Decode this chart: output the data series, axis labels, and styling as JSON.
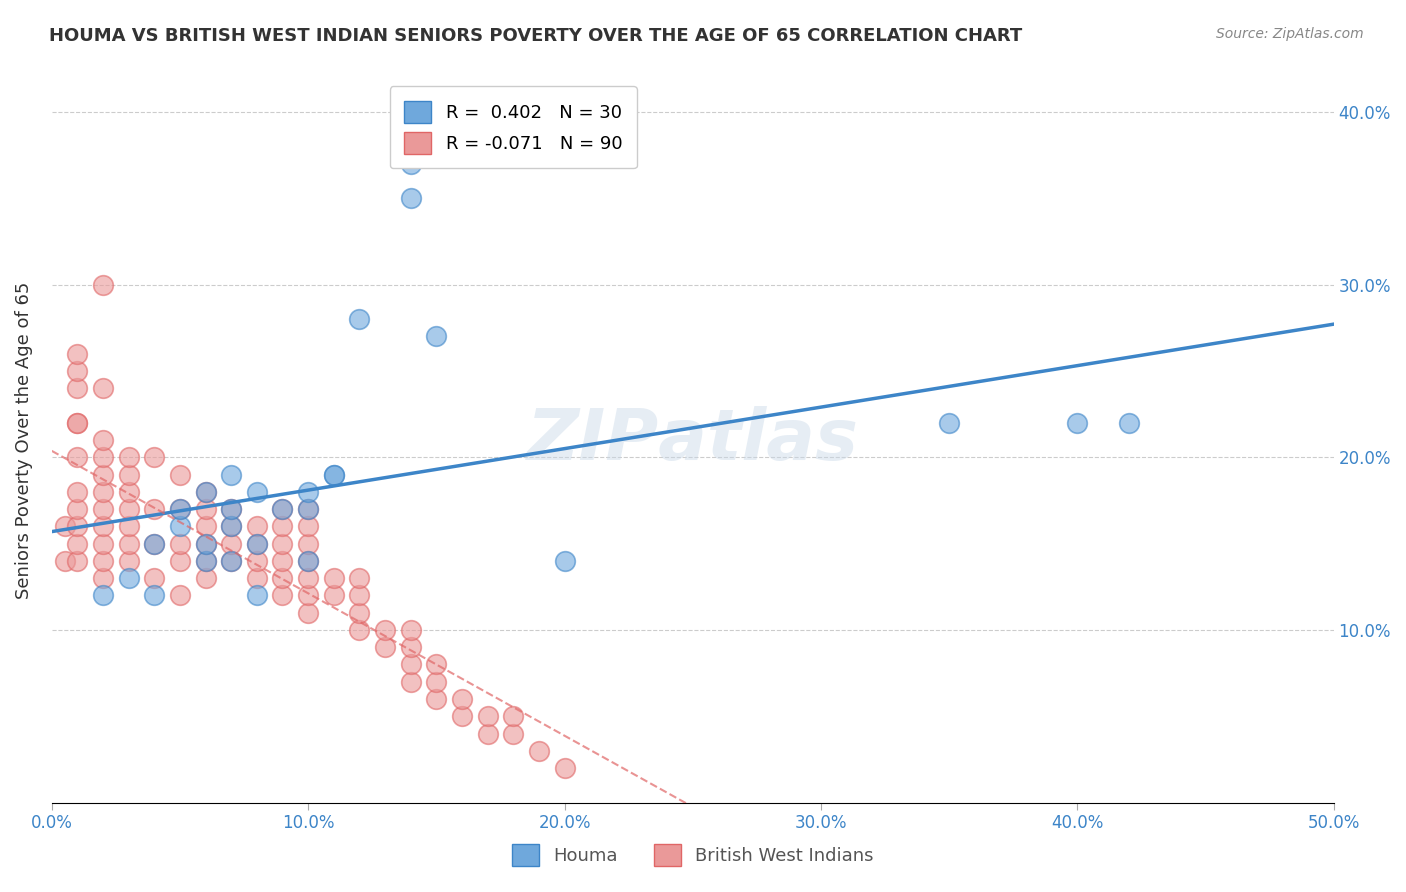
{
  "title": "HOUMA VS BRITISH WEST INDIAN SENIORS POVERTY OVER THE AGE OF 65 CORRELATION CHART",
  "source": "Source: ZipAtlas.com",
  "xlabel_bottom": "",
  "ylabel": "Seniors Poverty Over the Age of 65",
  "xlim": [
    0.0,
    0.5
  ],
  "ylim": [
    0.0,
    0.42
  ],
  "xticks": [
    0.0,
    0.1,
    0.2,
    0.3,
    0.4,
    0.5
  ],
  "xtick_labels": [
    "0.0%",
    "10.0%",
    "20.0%",
    "30.0%",
    "40.0%",
    "50.0%"
  ],
  "yticks": [
    0.1,
    0.2,
    0.3,
    0.4
  ],
  "ytick_labels": [
    "10.0%",
    "20.0%",
    "30.0%",
    "40.0%"
  ],
  "houma_color": "#6fa8dc",
  "bwi_color": "#ea9999",
  "houma_R": 0.402,
  "houma_N": 30,
  "bwi_R": -0.071,
  "bwi_N": 90,
  "watermark": "ZIPAtlas",
  "legend_label_houma": "Houma",
  "legend_label_bwi": "British West Indians",
  "houma_line_color": "#3d85c8",
  "bwi_line_color": "#e06666",
  "houma_scatter_x": [
    0.02,
    0.03,
    0.04,
    0.04,
    0.05,
    0.05,
    0.06,
    0.06,
    0.06,
    0.07,
    0.07,
    0.07,
    0.07,
    0.08,
    0.08,
    0.08,
    0.09,
    0.1,
    0.1,
    0.1,
    0.11,
    0.11,
    0.12,
    0.14,
    0.14,
    0.15,
    0.2,
    0.35,
    0.4,
    0.42
  ],
  "houma_scatter_y": [
    0.12,
    0.13,
    0.12,
    0.15,
    0.16,
    0.17,
    0.14,
    0.15,
    0.18,
    0.14,
    0.16,
    0.17,
    0.19,
    0.12,
    0.15,
    0.18,
    0.17,
    0.14,
    0.17,
    0.18,
    0.19,
    0.19,
    0.28,
    0.35,
    0.37,
    0.27,
    0.14,
    0.22,
    0.22,
    0.22
  ],
  "bwi_scatter_x": [
    0.005,
    0.005,
    0.01,
    0.01,
    0.01,
    0.01,
    0.01,
    0.01,
    0.01,
    0.01,
    0.01,
    0.01,
    0.01,
    0.02,
    0.02,
    0.02,
    0.02,
    0.02,
    0.02,
    0.02,
    0.02,
    0.02,
    0.02,
    0.02,
    0.03,
    0.03,
    0.03,
    0.03,
    0.03,
    0.03,
    0.03,
    0.04,
    0.04,
    0.04,
    0.04,
    0.05,
    0.05,
    0.05,
    0.05,
    0.05,
    0.06,
    0.06,
    0.06,
    0.06,
    0.06,
    0.06,
    0.07,
    0.07,
    0.07,
    0.07,
    0.08,
    0.08,
    0.08,
    0.08,
    0.09,
    0.09,
    0.09,
    0.09,
    0.09,
    0.09,
    0.1,
    0.1,
    0.1,
    0.1,
    0.1,
    0.1,
    0.1,
    0.11,
    0.11,
    0.12,
    0.12,
    0.12,
    0.12,
    0.13,
    0.13,
    0.14,
    0.14,
    0.14,
    0.14,
    0.15,
    0.15,
    0.15,
    0.16,
    0.16,
    0.17,
    0.17,
    0.18,
    0.18,
    0.19,
    0.2
  ],
  "bwi_scatter_y": [
    0.14,
    0.16,
    0.22,
    0.24,
    0.25,
    0.26,
    0.14,
    0.15,
    0.16,
    0.17,
    0.18,
    0.2,
    0.22,
    0.13,
    0.14,
    0.15,
    0.16,
    0.17,
    0.18,
    0.19,
    0.2,
    0.21,
    0.24,
    0.3,
    0.14,
    0.15,
    0.16,
    0.17,
    0.18,
    0.19,
    0.2,
    0.13,
    0.15,
    0.17,
    0.2,
    0.12,
    0.14,
    0.15,
    0.17,
    0.19,
    0.13,
    0.14,
    0.15,
    0.16,
    0.17,
    0.18,
    0.14,
    0.15,
    0.16,
    0.17,
    0.13,
    0.14,
    0.15,
    0.16,
    0.12,
    0.13,
    0.14,
    0.15,
    0.16,
    0.17,
    0.11,
    0.12,
    0.13,
    0.14,
    0.15,
    0.16,
    0.17,
    0.12,
    0.13,
    0.1,
    0.11,
    0.12,
    0.13,
    0.09,
    0.1,
    0.07,
    0.08,
    0.09,
    0.1,
    0.06,
    0.07,
    0.08,
    0.05,
    0.06,
    0.04,
    0.05,
    0.04,
    0.05,
    0.03,
    0.02
  ]
}
